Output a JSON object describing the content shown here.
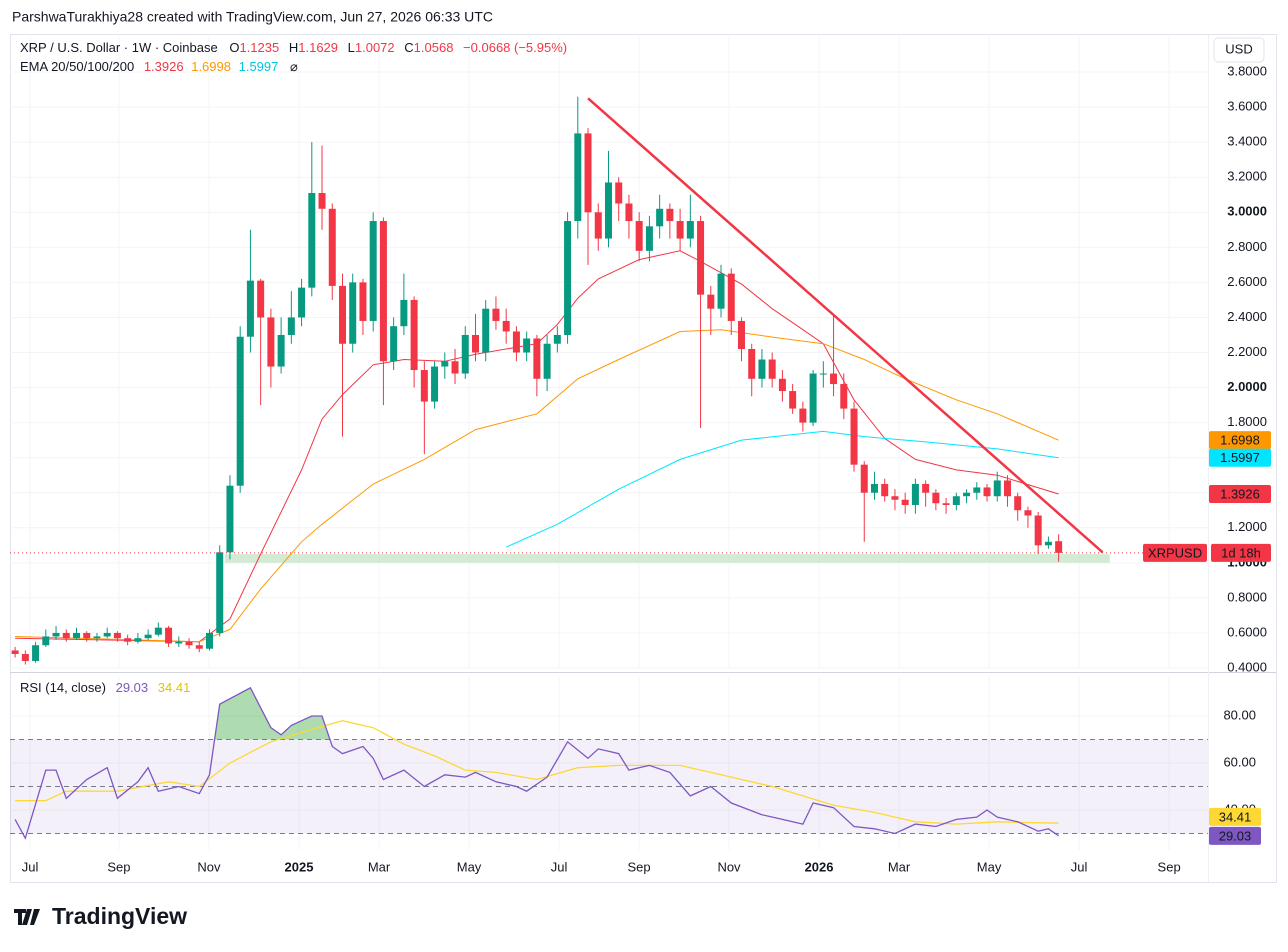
{
  "header": {
    "text": "ParshwaTurakhiya28 created with TradingView.com, Jun 27, 2026 06:33 UTC"
  },
  "chart_data": [
    {
      "type": "candlestick",
      "symbol_title": "XRP / U.S. Dollar · 1W · Coinbase",
      "ohlc_labels": [
        "O",
        "H",
        "L",
        "C"
      ],
      "change_text": "−0.0668 (−5.95%)",
      "currency": "USD",
      "price_tag": "XRPUSD",
      "countdown": "1d 18h",
      "up_color": "#089981",
      "down_color": "#f23645",
      "grid": true,
      "xlim": [
        -0.5,
        116.6
      ],
      "xticks": [
        {
          "value": 1.46,
          "label": "Jul"
        },
        {
          "value": 10.15,
          "label": "Sep"
        },
        {
          "value": 18.95,
          "label": "Nov"
        },
        {
          "value": 27.75,
          "label": "2025",
          "bold": true
        },
        {
          "value": 35.57,
          "label": "Mar"
        },
        {
          "value": 44.37,
          "label": "May"
        },
        {
          "value": 53.17,
          "label": "Jul"
        },
        {
          "value": 60.99,
          "label": "Sep"
        },
        {
          "value": 69.78,
          "label": "Nov"
        },
        {
          "value": 78.58,
          "label": "2026",
          "bold": true
        },
        {
          "value": 86.4,
          "label": "Mar"
        },
        {
          "value": 95.2,
          "label": "May"
        },
        {
          "value": 104.0,
          "label": "Jul"
        },
        {
          "value": 112.8,
          "label": "Sep"
        }
      ],
      "ylim": [
        0.4,
        4.0
      ],
      "yticks": [
        {
          "value": 0.4,
          "label": "0.4000"
        },
        {
          "value": 0.6,
          "label": "0.6000"
        },
        {
          "value": 0.8,
          "label": "0.8000"
        },
        {
          "value": 1.0,
          "label": "1.0000",
          "bold": true
        },
        {
          "value": 1.2,
          "label": "1.2000"
        },
        {
          "value": 1.4,
          "label": "1.4000"
        },
        {
          "value": 1.6,
          "label": "1.6000"
        },
        {
          "value": 1.8,
          "label": "1.8000"
        },
        {
          "value": 2.0,
          "label": "2.0000",
          "bold": true
        },
        {
          "value": 2.2,
          "label": "2.2000"
        },
        {
          "value": 2.4,
          "label": "2.4000"
        },
        {
          "value": 2.6,
          "label": "2.6000"
        },
        {
          "value": 2.8,
          "label": "2.8000"
        },
        {
          "value": 3.0,
          "label": "3.0000",
          "bold": true
        },
        {
          "value": 3.2,
          "label": "3.2000"
        },
        {
          "value": 3.4,
          "label": "3.4000"
        },
        {
          "value": 3.6,
          "label": "3.6000"
        },
        {
          "value": 3.8,
          "label": "3.8000"
        }
      ],
      "candles": {
        "open": [
          0.5,
          0.48,
          0.44,
          0.53,
          0.58,
          0.6,
          0.57,
          0.6,
          0.57,
          0.58,
          0.6,
          0.57,
          0.55,
          0.57,
          0.59,
          0.63,
          0.54,
          0.55,
          0.53,
          0.51,
          0.6,
          1.06,
          1.44,
          2.29,
          2.61,
          2.4,
          2.12,
          2.3,
          2.4,
          2.57,
          3.11,
          3.02,
          2.58,
          2.25,
          2.6,
          2.38,
          2.95,
          2.15,
          2.35,
          2.5,
          2.1,
          1.92,
          2.12,
          2.15,
          2.08,
          2.3,
          2.2,
          2.45,
          2.38,
          2.32,
          2.2,
          2.28,
          2.05,
          2.25,
          2.3,
          2.95,
          3.45,
          3.0,
          2.85,
          3.17,
          3.05,
          2.95,
          2.78,
          2.92,
          3.02,
          2.95,
          2.85,
          2.95,
          2.53,
          2.45,
          2.65,
          2.38,
          2.22,
          2.05,
          2.16,
          2.05,
          1.98,
          1.88,
          1.8,
          2.08,
          2.08,
          2.02,
          1.88,
          1.56,
          1.4,
          1.45,
          1.38,
          1.36,
          1.33,
          1.45,
          1.4,
          1.34,
          1.33,
          1.38,
          1.4,
          1.43,
          1.38,
          1.47,
          1.38,
          1.3,
          1.27,
          1.1,
          1.1235
        ],
        "high": [
          0.52,
          0.5,
          0.55,
          0.62,
          0.64,
          0.62,
          0.63,
          0.61,
          0.6,
          0.63,
          0.61,
          0.59,
          0.6,
          0.62,
          0.66,
          0.64,
          0.58,
          0.57,
          0.55,
          0.62,
          1.1,
          1.5,
          2.35,
          2.9,
          2.62,
          2.45,
          2.4,
          2.55,
          2.62,
          3.4,
          3.38,
          3.05,
          2.65,
          2.65,
          2.62,
          3.0,
          2.97,
          2.4,
          2.65,
          2.52,
          2.15,
          2.15,
          2.2,
          2.22,
          2.35,
          2.42,
          2.5,
          2.52,
          2.45,
          2.35,
          2.32,
          2.3,
          2.3,
          2.35,
          3.0,
          3.66,
          3.48,
          3.05,
          3.35,
          3.2,
          3.1,
          3.0,
          2.98,
          3.1,
          3.05,
          3.02,
          3.1,
          2.98,
          2.58,
          2.7,
          2.68,
          2.4,
          2.25,
          2.22,
          2.2,
          2.1,
          2.02,
          1.92,
          2.1,
          2.15,
          2.42,
          2.08,
          1.92,
          1.58,
          1.52,
          1.48,
          1.42,
          1.4,
          1.48,
          1.47,
          1.42,
          1.37,
          1.4,
          1.42,
          1.46,
          1.45,
          1.52,
          1.5,
          1.4,
          1.32,
          1.29,
          1.15,
          1.1629
        ],
        "low": [
          0.46,
          0.42,
          0.43,
          0.52,
          0.56,
          0.55,
          0.56,
          0.55,
          0.55,
          0.57,
          0.55,
          0.53,
          0.54,
          0.56,
          0.58,
          0.52,
          0.52,
          0.51,
          0.49,
          0.5,
          0.58,
          1.02,
          1.4,
          2.2,
          1.9,
          2.0,
          2.08,
          2.25,
          2.35,
          2.52,
          2.9,
          2.5,
          1.72,
          2.2,
          2.3,
          2.32,
          1.9,
          2.1,
          2.3,
          2.0,
          1.62,
          1.88,
          2.05,
          2.02,
          2.05,
          2.15,
          2.15,
          2.33,
          2.25,
          2.15,
          2.15,
          1.95,
          1.98,
          2.2,
          2.25,
          2.85,
          2.7,
          2.78,
          2.8,
          2.95,
          2.85,
          2.72,
          2.72,
          2.85,
          2.85,
          2.78,
          2.8,
          1.77,
          2.3,
          2.4,
          2.3,
          2.15,
          1.95,
          2.0,
          2.0,
          1.92,
          1.85,
          1.75,
          1.78,
          2.0,
          1.95,
          1.82,
          1.52,
          1.12,
          1.36,
          1.35,
          1.3,
          1.28,
          1.28,
          1.32,
          1.3,
          1.28,
          1.3,
          1.34,
          1.36,
          1.35,
          1.35,
          1.32,
          1.24,
          1.2,
          1.05,
          1.08,
          1.0072
        ],
        "close": [
          0.48,
          0.44,
          0.53,
          0.58,
          0.6,
          0.57,
          0.6,
          0.57,
          0.58,
          0.6,
          0.57,
          0.55,
          0.57,
          0.59,
          0.63,
          0.54,
          0.55,
          0.53,
          0.51,
          0.6,
          1.06,
          1.44,
          2.29,
          2.61,
          2.4,
          2.12,
          2.3,
          2.4,
          2.57,
          3.11,
          3.02,
          2.58,
          2.25,
          2.6,
          2.38,
          2.95,
          2.15,
          2.35,
          2.5,
          2.1,
          1.92,
          2.12,
          2.15,
          2.08,
          2.3,
          2.2,
          2.45,
          2.38,
          2.32,
          2.2,
          2.28,
          2.05,
          2.25,
          2.3,
          2.95,
          3.45,
          3.0,
          2.85,
          3.17,
          3.05,
          2.95,
          2.78,
          2.92,
          3.02,
          2.95,
          2.85,
          2.95,
          2.53,
          2.45,
          2.65,
          2.38,
          2.22,
          2.05,
          2.16,
          2.05,
          1.98,
          1.88,
          1.8,
          2.08,
          2.08,
          2.02,
          1.88,
          1.56,
          1.4,
          1.45,
          1.38,
          1.36,
          1.33,
          1.45,
          1.4,
          1.34,
          1.33,
          1.38,
          1.4,
          1.43,
          1.38,
          1.47,
          1.38,
          1.3,
          1.27,
          1.1,
          1.12,
          1.0568
        ]
      },
      "indicator_title": "EMA 20/50/100/200",
      "series": [
        {
          "color": "#f23645",
          "x": [
            0,
            18,
            21,
            24,
            28,
            30,
            32,
            35,
            38,
            42,
            45,
            51,
            53,
            55,
            57,
            61,
            65,
            67,
            71,
            74,
            77,
            79,
            82,
            85,
            88,
            92,
            96,
            102
          ],
          "values": [
            0.57,
            0.55,
            0.68,
            1.05,
            1.53,
            1.82,
            1.96,
            2.13,
            2.16,
            2.15,
            2.19,
            2.25,
            2.36,
            2.51,
            2.62,
            2.73,
            2.78,
            2.72,
            2.59,
            2.45,
            2.33,
            2.25,
            1.93,
            1.71,
            1.59,
            1.53,
            1.5,
            1.3926
          ]
        },
        {
          "color": "#ff9800",
          "x": [
            0,
            18,
            21,
            24,
            28,
            30,
            35,
            40,
            45,
            51,
            55,
            59,
            65,
            69,
            75,
            79,
            83,
            87,
            92,
            96,
            102
          ],
          "values": [
            0.58,
            0.55,
            0.62,
            0.85,
            1.12,
            1.22,
            1.45,
            1.59,
            1.76,
            1.85,
            2.05,
            2.16,
            2.32,
            2.33,
            2.28,
            2.25,
            2.16,
            2.05,
            1.93,
            1.85,
            1.6998
          ]
        },
        {
          "color": "#00e5ff",
          "x": [
            48,
            53,
            59,
            65,
            71,
            79,
            83,
            89,
            96,
            102
          ],
          "values": [
            1.09,
            1.22,
            1.42,
            1.59,
            1.7,
            1.75,
            1.72,
            1.69,
            1.65,
            1.5997
          ]
        }
      ],
      "ema_200_value": "⌀",
      "trendline": {
        "color": "#f23645",
        "x": [
          56,
          106.3
        ],
        "y": [
          3.65,
          1.06
        ]
      },
      "support_zone": {
        "color": "#c8e6c9",
        "x": [
          20.5,
          107
        ],
        "y": [
          1.0,
          1.05
        ]
      }
    },
    {
      "type": "line",
      "title": "RSI (14, close)",
      "xlim": [
        -0.5,
        116.6
      ],
      "ylim": [
        23,
        97
      ],
      "yticks": [
        {
          "value": 40,
          "label": "40.00"
        },
        {
          "value": 60,
          "label": "60.00"
        },
        {
          "value": 80,
          "label": "80.00"
        }
      ],
      "bands": [
        70,
        50,
        30
      ],
      "band_color": "#7e57c2",
      "overbought_fill": "#4caf50",
      "series": [
        {
          "color": "#7e57c2",
          "x": [
            0,
            1,
            3,
            4,
            5,
            7,
            9,
            10,
            12,
            13,
            14,
            16,
            18,
            19,
            20,
            23,
            25,
            26,
            27,
            29,
            30,
            31,
            32,
            34,
            35,
            36,
            38,
            40,
            42,
            44,
            45,
            47,
            49,
            50,
            52,
            54,
            56,
            57,
            59,
            60,
            62,
            64,
            66,
            68,
            70,
            73,
            75,
            77,
            78,
            80,
            82,
            84,
            86,
            88,
            90,
            92,
            94,
            95,
            96,
            98,
            100,
            101,
            102
          ],
          "values": [
            36,
            28,
            57,
            57,
            45,
            53,
            58,
            45,
            52,
            58,
            48,
            50,
            47,
            55,
            85,
            92,
            75,
            72,
            76,
            80,
            80,
            67,
            64,
            67,
            62,
            53,
            57,
            50,
            55,
            54,
            56,
            52,
            50,
            48,
            54,
            69,
            62,
            66,
            64,
            57,
            59,
            56,
            46,
            50,
            43,
            38,
            36,
            34,
            43,
            41,
            33,
            32,
            30,
            34,
            33,
            36,
            37,
            40,
            37,
            35,
            31,
            32,
            29.03
          ]
        },
        {
          "color": "#fdd835",
          "x": [
            0,
            3,
            5,
            10,
            15,
            18,
            21,
            25,
            28,
            32,
            35,
            38,
            41,
            44,
            47,
            51,
            55,
            59,
            65,
            69,
            74,
            77,
            80,
            84,
            88,
            92,
            96,
            102
          ],
          "values": [
            44,
            44,
            48,
            48,
            52,
            50,
            60,
            69,
            73,
            78,
            75,
            68,
            63,
            57,
            56,
            53,
            58,
            59,
            59,
            55,
            50,
            46,
            42,
            39,
            35,
            34,
            35,
            34.41
          ]
        }
      ]
    }
  ],
  "footer": {
    "logo": "TradingView"
  }
}
